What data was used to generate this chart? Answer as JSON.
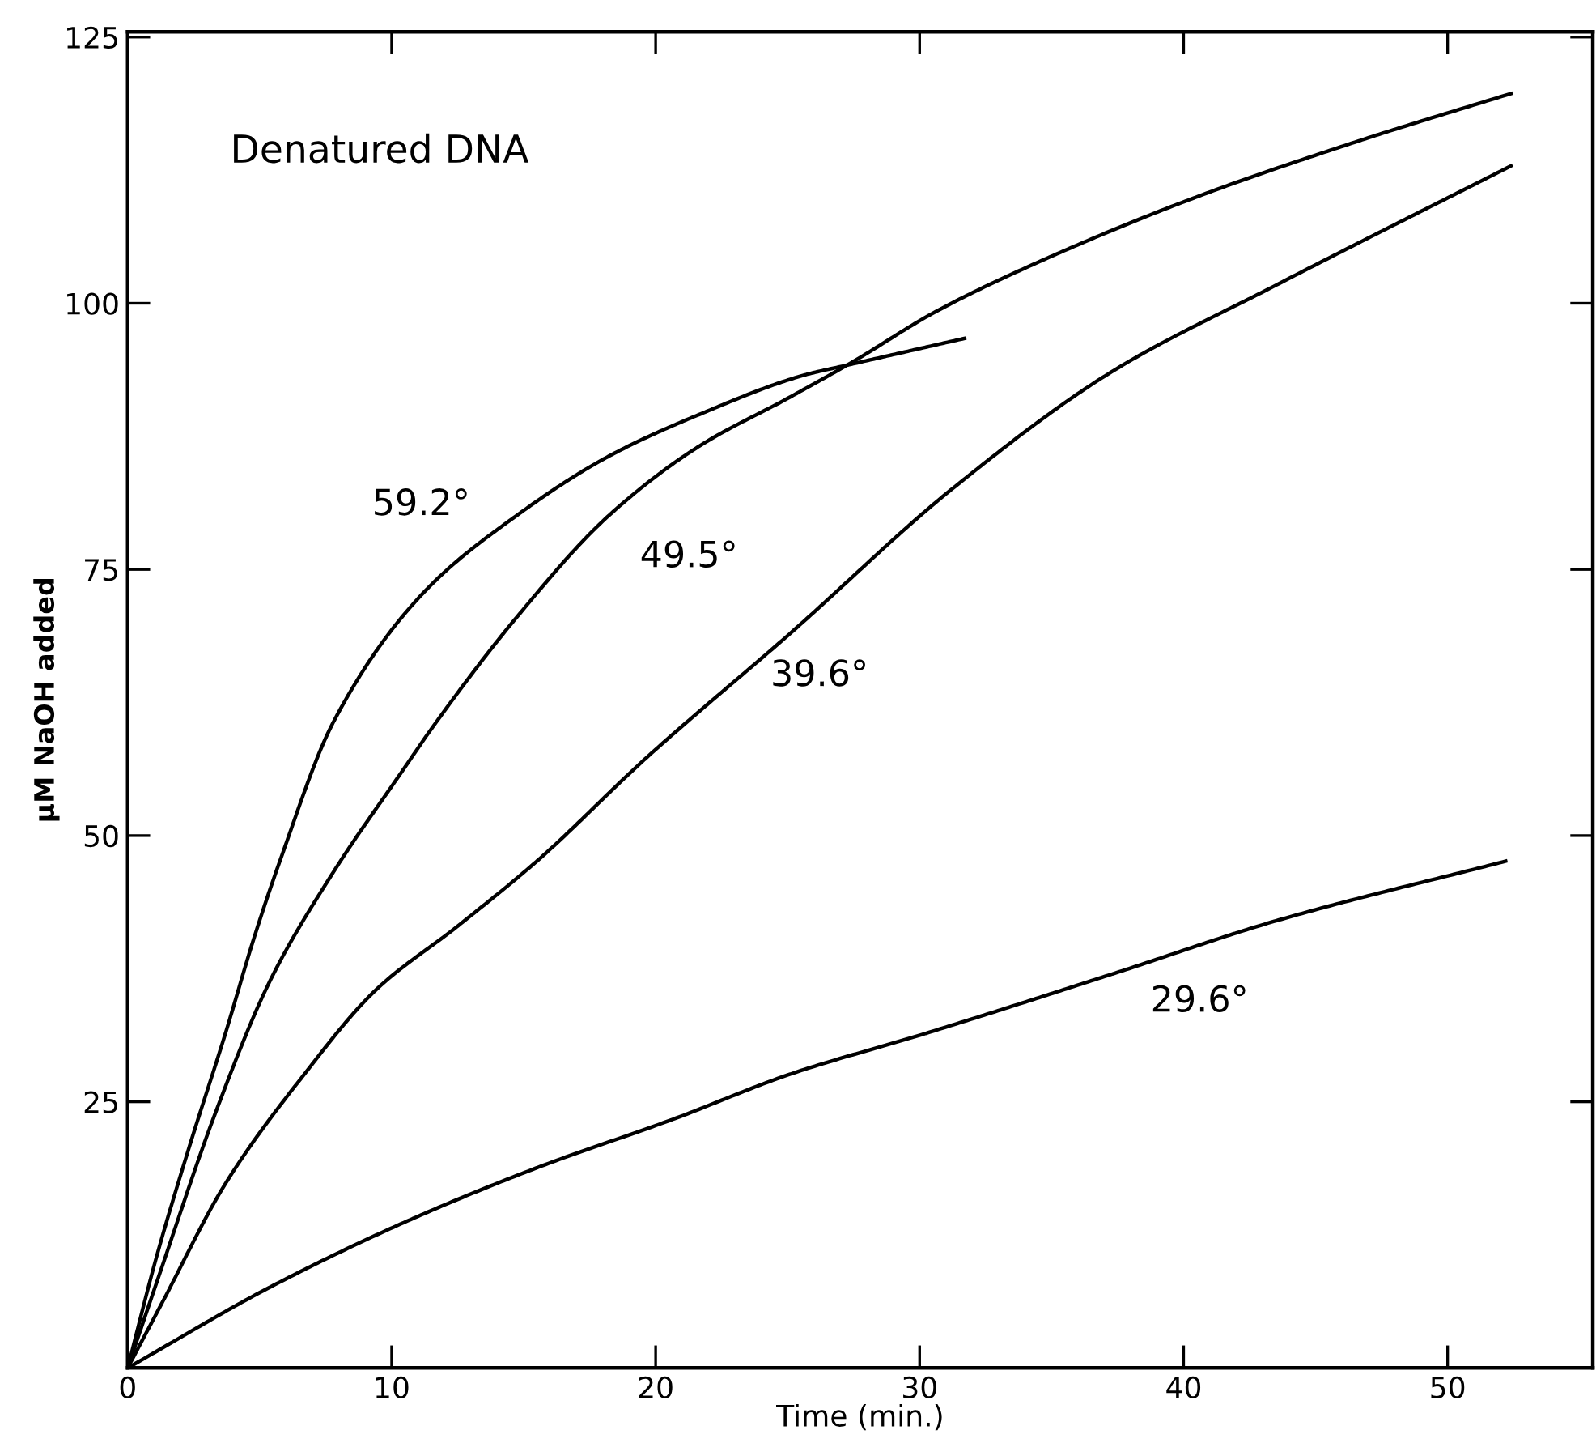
{
  "chart_data": {
    "type": "line",
    "title": "Denatured DNA",
    "xlabel": "Time (min.)",
    "ylabel": "μM NaOH added",
    "xlim": [
      0,
      55.5
    ],
    "ylim": [
      0,
      125.5
    ],
    "xticks": [
      0,
      10,
      20,
      30,
      40,
      50
    ],
    "yticks": [
      {
        "value": 0,
        "label": null
      },
      25,
      50,
      75,
      100,
      125
    ],
    "grid": false,
    "line_style": "solid",
    "series": [
      {
        "name": "59.2°",
        "color": "#000000",
        "x": [
          0,
          1.1,
          2.3,
          3.7,
          4.8,
          5.75,
          7.8,
          11.2,
          14.7,
          18.2,
          21.6,
          25.7,
          27.1,
          31.7
        ],
        "values": [
          0,
          10.5,
          20.5,
          31.4,
          40.5,
          47.5,
          60.7,
          72.8,
          80,
          85.6,
          89.5,
          93.3,
          94.1,
          96.7
        ]
      },
      {
        "name": "49.5°",
        "color": "#000000",
        "x": [
          0,
          1.3,
          3.3,
          5.4,
          7.8,
          10.3,
          11.7,
          14.7,
          18.2,
          21.6,
          25.1,
          27.4,
          30.6,
          33.9,
          40.4,
          46.7,
          52.4
        ],
        "values": [
          0,
          9.5,
          23.8,
          36.4,
          46.6,
          55.7,
          60.7,
          70.4,
          80,
          86.5,
          91.2,
          94.4,
          99.2,
          103.2,
          109.9,
          115.3,
          119.7
        ]
      },
      {
        "name": "39.6°",
        "color": "#000000",
        "x": [
          0,
          1.3,
          3.7,
          6.6,
          9.4,
          12.5,
          15.5,
          19.6,
          25.1,
          31.2,
          37.3,
          43.5,
          52.4
        ],
        "values": [
          0,
          6.1,
          17.3,
          27.3,
          35.5,
          41.5,
          47.6,
          57.2,
          69,
          82.5,
          93.6,
          101.7,
          112.9
        ]
      },
      {
        "name": "29.6°",
        "color": "#000000",
        "x": [
          0,
          5.4,
          10.5,
          15.5,
          20.7,
          25.1,
          30.2,
          37.3,
          43.5,
          52.2
        ],
        "values": [
          0,
          7.6,
          13.7,
          18.8,
          23.4,
          27.6,
          31.4,
          37,
          42,
          47.6
        ]
      }
    ]
  }
}
